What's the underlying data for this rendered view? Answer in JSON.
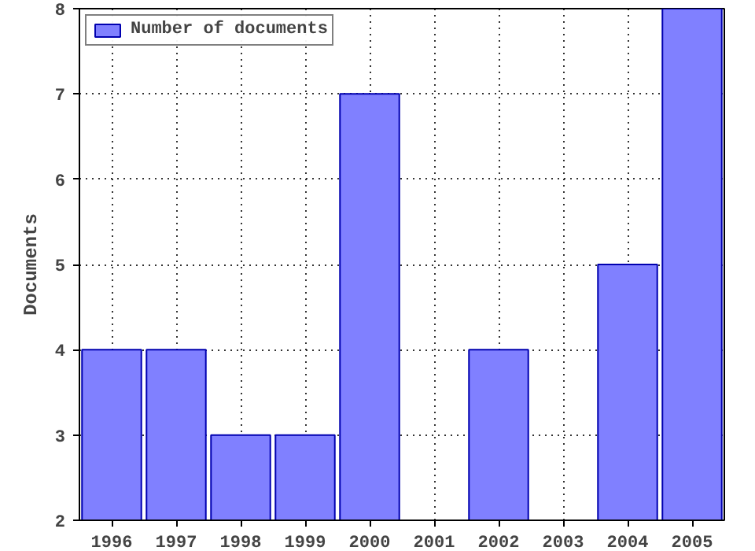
{
  "chart_data": {
    "type": "bar",
    "ylabel": "Documents",
    "x": [
      1996,
      1997,
      1998,
      1999,
      2000,
      2001,
      2002,
      2003,
      2004,
      2005
    ],
    "series": [
      {
        "name": "Number of documents",
        "color": "#8080ff",
        "values": [
          4,
          4,
          3,
          3,
          7,
          null,
          4,
          null,
          5,
          8
        ]
      }
    ],
    "xlim": [
      1995.5,
      2005.5
    ],
    "xticks": [
      1996,
      1997,
      1998,
      1999,
      2000,
      2001,
      2002,
      2003,
      2004,
      2005
    ],
    "ylim": [
      2,
      8
    ],
    "yticks": [
      2,
      3,
      4,
      5,
      6,
      7,
      8
    ],
    "grid": true,
    "legend": "top left"
  }
}
